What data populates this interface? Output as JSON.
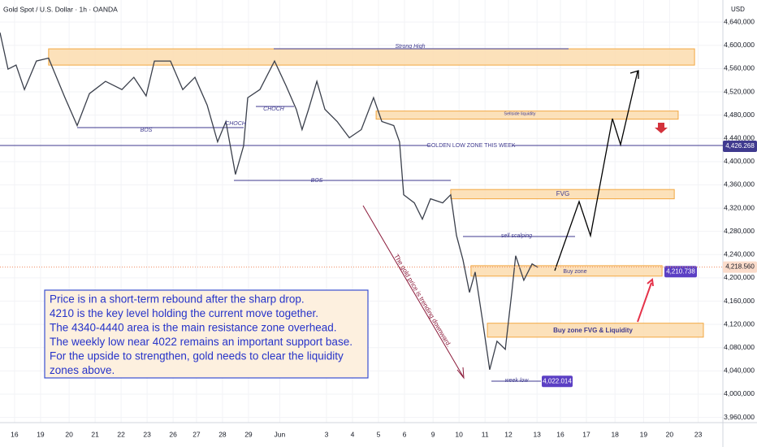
{
  "chart_data": {
    "type": "line",
    "title": "Gold Spot / U.S. Dollar · 1h · OANDA",
    "unit": "USD",
    "color": "#3a3f4b",
    "grid": true,
    "xlim": [
      -0.56,
      27.25
    ],
    "ylim": [
      3951000,
      4678000
    ],
    "yticks": [
      {
        "value": 3960000,
        "label": "3,960,000"
      },
      {
        "value": 4000000,
        "label": "4,000,000"
      },
      {
        "value": 4040000,
        "label": "4,040,000"
      },
      {
        "value": 4080000,
        "label": "4,080,000"
      },
      {
        "value": 4120000,
        "label": "4,120,000"
      },
      {
        "value": 4160000,
        "label": "4,160,000"
      },
      {
        "value": 4200000,
        "label": "4,200,000"
      },
      {
        "value": 4240000,
        "label": "4,240,000"
      },
      {
        "value": 4280000,
        "label": "4,280,000"
      },
      {
        "value": 4320000,
        "label": "4,320,000"
      },
      {
        "value": 4360000,
        "label": "4,360,000"
      },
      {
        "value": 4400000,
        "label": "4,400,000"
      },
      {
        "value": 4440000,
        "label": "4,440,000"
      },
      {
        "value": 4480000,
        "label": "4,480,000"
      },
      {
        "value": 4520000,
        "label": "4,520,000"
      },
      {
        "value": 4560000,
        "label": "4,560,000"
      },
      {
        "value": 4600000,
        "label": "4,600,000"
      },
      {
        "value": 4640000,
        "label": "4,640,000"
      }
    ],
    "xticks": [
      {
        "value": 0,
        "label": "16"
      },
      {
        "value": 1,
        "label": "19"
      },
      {
        "value": 2.1,
        "label": "20"
      },
      {
        "value": 3.1,
        "label": "21"
      },
      {
        "value": 4.1,
        "label": "22"
      },
      {
        "value": 5.1,
        "label": "23"
      },
      {
        "value": 6.1,
        "label": "26"
      },
      {
        "value": 7,
        "label": "27"
      },
      {
        "value": 8,
        "label": "28"
      },
      {
        "value": 9,
        "label": "29"
      },
      {
        "value": 10.2,
        "label": "Jun"
      },
      {
        "value": 12,
        "label": "3"
      },
      {
        "value": 13,
        "label": "4"
      },
      {
        "value": 14,
        "label": "5"
      },
      {
        "value": 15,
        "label": "6"
      },
      {
        "value": 16.1,
        "label": "9"
      },
      {
        "value": 17.1,
        "label": "10"
      },
      {
        "value": 18.1,
        "label": "11"
      },
      {
        "value": 19,
        "label": "12"
      },
      {
        "value": 20.1,
        "label": "13"
      },
      {
        "value": 21,
        "label": "16"
      },
      {
        "value": 22,
        "label": "17"
      },
      {
        "value": 23.1,
        "label": "18"
      },
      {
        "value": 24.2,
        "label": "19"
      },
      {
        "value": 25.2,
        "label": "20"
      },
      {
        "value": 26.3,
        "label": "23"
      }
    ],
    "x": [
      -0.56,
      -0.25,
      0.06,
      0.38,
      0.84,
      1.31,
      1.94,
      2.41,
      2.88,
      3.5,
      4.13,
      4.59,
      5.06,
      5.38,
      6,
      6.47,
      6.94,
      7.41,
      7.81,
      8.13,
      8.5,
      8.81,
      8.97,
      9.44,
      10,
      10.44,
      10.84,
      11.06,
      11.31,
      11.63,
      11.94,
      12.41,
      12.88,
      13.34,
      13.81,
      14.13,
      14.59,
      14.81,
      14.97,
      15.38,
      15.69,
      16,
      16.47,
      16.78,
      17,
      17.25,
      17.5,
      17.72,
      18.03,
      18.28,
      18.56,
      18.88,
      19.13,
      19.28,
      19.59,
      19.91,
      20.13
    ],
    "values": [
      4622000,
      4559000,
      4566000,
      4524000,
      4573000,
      4578000,
      4510000,
      4462000,
      4517000,
      4538000,
      4524000,
      4545000,
      4513000,
      4573000,
      4573000,
      4524000,
      4545000,
      4497000,
      4434000,
      4469000,
      4378000,
      4427000,
      4510000,
      4524000,
      4573000,
      4531000,
      4490000,
      4455000,
      4490000,
      4538000,
      4490000,
      4469000,
      4441000,
      4455000,
      4510000,
      4469000,
      4462000,
      4434000,
      4343000,
      4329000,
      4301000,
      4336000,
      4329000,
      4343000,
      4273000,
      4231000,
      4175000,
      4210000,
      4119000,
      4042000,
      4091000,
      4077000,
      4175000,
      4238000,
      4196000,
      4224000,
      4218000
    ],
    "zones": [
      {
        "x": [
          1.31,
          26.16
        ],
        "y": [
          4566000,
          4594000
        ]
      },
      {
        "x": [
          13.91,
          25.53
        ],
        "y": [
          4473000,
          4487000
        ]
      },
      {
        "x": [
          16.78,
          25.38
        ],
        "y": [
          4336000,
          4352000
        ]
      },
      {
        "x": [
          17.56,
          24.91
        ],
        "y": [
          4203000,
          4221000
        ]
      },
      {
        "x": [
          18.19,
          26.5
        ],
        "y": [
          4098000,
          4122000
        ]
      }
    ],
    "price_tags": [
      {
        "value": 4426268,
        "label": "4,426.268",
        "color": "#3f3a8f"
      },
      {
        "value": 4210738,
        "label": "4,210.738",
        "color": "#5b3fc4"
      },
      {
        "value": 4218560,
        "label": "4,218.560",
        "color": "#fbdccb"
      },
      {
        "value": 4022014,
        "label": "4,022.014",
        "color": "#5b3fc4"
      }
    ],
    "annotations": [
      "Strong High",
      "Sellside liquidity",
      "GOLDEN LOW ZONE THIS WEEK",
      "FVG",
      "sell scalping",
      "Buy zone",
      "Buy zone FVG & Liquidity",
      "week low",
      "BOS",
      "BOS",
      "CHOCH",
      "CHOCH",
      "The gold price is trending downward."
    ],
    "note": [
      "Price is in a short-term rebound after the sharp drop.",
      "4210 is the key level holding the current move together.",
      "The 4340-4440 area is the main resistance zone overhead.",
      "The weekly low near 4022 remains an important support base.",
      "For the upside to strengthen, gold needs to clear the liquidity",
      "zones above."
    ]
  }
}
